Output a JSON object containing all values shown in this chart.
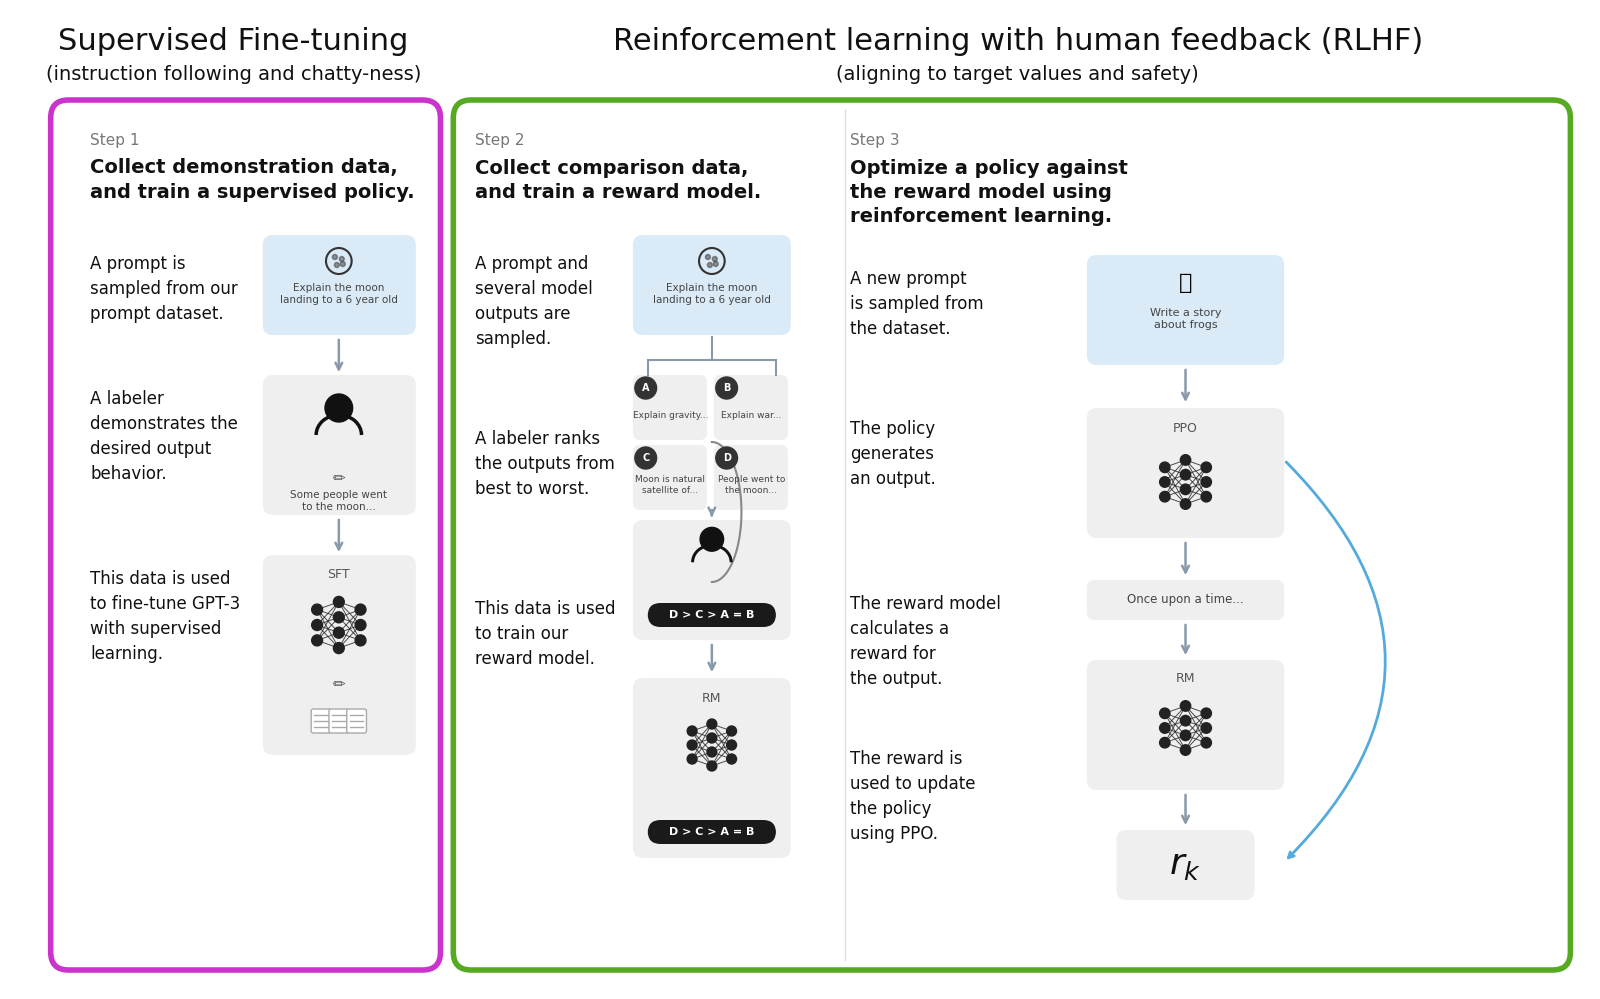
{
  "bg_color": "#ffffff",
  "title1": "Supervised Fine-tuning",
  "subtitle1": "(instruction following and chatty-ness)",
  "title2": "Reinforcement learning with human feedback (RLHF)",
  "subtitle2": "(aligning to target values and safety)",
  "box1_color": "#cc33cc",
  "box2_color": "#55aa22",
  "step1_label": "Step 1",
  "step1_title": "Collect demonstration data,\nand train a supervised policy.",
  "step2_label": "Step 2",
  "step2_title": "Collect comparison data,\nand train a reward model.",
  "step3_label": "Step 3",
  "step3_title": "Optimize a policy against\nthe reward model using\nreinforcement learning.",
  "step1_texts": [
    "A prompt is\nsampled from our\nprompt dataset.",
    "A labeler\ndemonstrates the\ndesired output\nbehavior.",
    "This data is used\nto fine-tune GPT-3\nwith supervised\nlearning."
  ],
  "step2_texts": [
    "A prompt and\nseveral model\noutputs are\nsampled.",
    "A labeler ranks\nthe outputs from\nbest to worst.",
    "This data is used\nto train our\nreward model."
  ],
  "step3_texts": [
    "A new prompt\nis sampled from\nthe dataset.",
    "The policy\ngenerates\nan output.",
    "The reward model\ncalculates a\nreward for\nthe output.",
    "The reward is\nused to update\nthe policy\nusing PPO."
  ],
  "arrow_color": "#8899aa",
  "feedback_arrow_color": "#55aadd",
  "text_color": "#111111",
  "label_color": "#777777",
  "node_color": "#222222",
  "card_blue": "#daeaf7",
  "card_gray": "#efefef",
  "card_dark": "#f5f5f5"
}
